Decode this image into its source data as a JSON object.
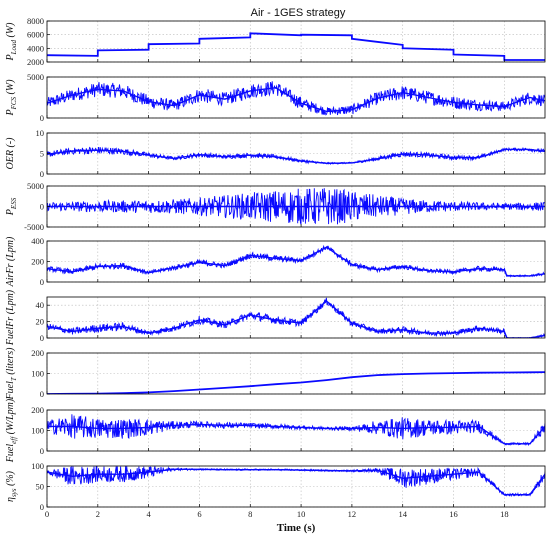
{
  "chart_data": {
    "type": "line",
    "title": "Air - 1GES strategy",
    "xlabel": "Time (s)",
    "xlim": [
      0,
      19.6
    ],
    "xticks": [
      "0",
      "2",
      "4",
      "6",
      "8",
      "10",
      "12",
      "14",
      "16",
      "18"
    ],
    "color": "#0a0aff",
    "grid": true,
    "panels": [
      {
        "id": "pload",
        "ylabel_main": "P",
        "ylabel_sub": "Load",
        "ylabel_unit": " (W)",
        "ylim": [
          2000,
          8000
        ],
        "yticks": [
          "2000",
          "4000",
          "6000",
          "8000"
        ],
        "kind": "step",
        "x": [
          0,
          2,
          2,
          4,
          4,
          6,
          6,
          8,
          8,
          10,
          10,
          12,
          12,
          14,
          14,
          16,
          16,
          18,
          18,
          19.6
        ],
        "y": [
          3000,
          2900,
          3700,
          3800,
          4600,
          4700,
          5400,
          5600,
          6200,
          5900,
          6000,
          5900,
          5400,
          4500,
          4000,
          3800,
          3100,
          2900,
          2300,
          2300
        ]
      },
      {
        "id": "pfc",
        "ylabel_main": "P",
        "ylabel_sub": "FCS",
        "ylabel_unit": " (W)",
        "ylim": [
          0,
          5000
        ],
        "yticks": [
          "0",
          "5000"
        ],
        "kind": "noisy",
        "x": [
          0,
          1,
          2,
          3,
          4,
          5,
          6,
          7,
          8,
          9,
          10,
          11,
          12,
          13,
          14,
          15,
          16,
          17,
          18,
          19,
          19.6
        ],
        "y": [
          1800,
          2800,
          3500,
          3300,
          2000,
          1500,
          2800,
          2300,
          3300,
          3700,
          1800,
          800,
          1000,
          2400,
          3100,
          2500,
          1900,
          1600,
          1400,
          2500,
          2100
        ],
        "noise": [
          700,
          800,
          900,
          900,
          800,
          700,
          900,
          800,
          900,
          900,
          800,
          500,
          600,
          800,
          900,
          800,
          800,
          700,
          600,
          800,
          700
        ]
      },
      {
        "id": "oer",
        "ylabel_main": "OER (-)",
        "ylabel_sub": "",
        "ylabel_unit": "",
        "ylim": [
          0,
          10
        ],
        "yticks": [
          "0",
          "5",
          "10"
        ],
        "kind": "noisy",
        "x": [
          0,
          1,
          2,
          3,
          4,
          5,
          6,
          7,
          8,
          9,
          10,
          11,
          12,
          13,
          14,
          15,
          16,
          17,
          18,
          19,
          19.6
        ],
        "y": [
          4.8,
          5.6,
          5.8,
          5.5,
          4.6,
          3.8,
          4.7,
          4.2,
          4.6,
          4.2,
          3.2,
          2.6,
          2.7,
          3.7,
          4.9,
          4.6,
          4.0,
          4.0,
          6.0,
          6.0,
          5.5
        ],
        "noise": [
          0.7,
          0.8,
          0.9,
          0.8,
          0.6,
          0.4,
          0.6,
          0.5,
          0.6,
          0.5,
          0.4,
          0.2,
          0.2,
          0.5,
          0.7,
          0.6,
          0.6,
          0.5,
          0.3,
          0.4,
          0.5
        ]
      },
      {
        "id": "pss",
        "ylabel_main": "P",
        "ylabel_sub": "ESS",
        "ylabel_unit": "",
        "ylim": [
          -5000,
          5000
        ],
        "yticks": [
          "-5000",
          "0",
          "5000"
        ],
        "kind": "noisy",
        "x": [
          0,
          1,
          2,
          3,
          4,
          5,
          6,
          7,
          8,
          9,
          10,
          11,
          12,
          13,
          14,
          15,
          16,
          17,
          18,
          19,
          19.6
        ],
        "y": [
          0,
          0,
          0,
          0,
          0,
          0,
          0,
          0,
          0,
          0,
          0,
          0,
          0,
          0,
          0,
          0,
          0,
          0,
          0,
          0,
          0
        ],
        "noise": [
          1000,
          1200,
          1400,
          1500,
          1600,
          1800,
          2200,
          2800,
          3400,
          4000,
          4500,
          4800,
          3800,
          2800,
          2000,
          1500,
          1200,
          1000,
          800,
          1000,
          1100
        ]
      },
      {
        "id": "airfr",
        "ylabel_main": "AirFr (Lpm)",
        "ylabel_sub": "",
        "ylabel_unit": "",
        "ylim": [
          0,
          400
        ],
        "yticks": [
          "0",
          "200",
          "400"
        ],
        "kind": "noisy",
        "x": [
          0,
          1,
          2,
          3,
          4,
          5,
          6,
          7,
          8,
          9,
          10,
          11,
          12,
          13,
          14,
          15,
          16,
          17,
          18,
          18.1,
          19,
          19.6
        ],
        "y": [
          130,
          100,
          150,
          160,
          90,
          140,
          190,
          160,
          260,
          230,
          210,
          340,
          170,
          120,
          150,
          110,
          100,
          130,
          120,
          60,
          60,
          80
        ],
        "noise": [
          25,
          25,
          30,
          30,
          20,
          25,
          30,
          25,
          30,
          30,
          25,
          25,
          25,
          20,
          25,
          20,
          20,
          25,
          20,
          8,
          8,
          15
        ]
      },
      {
        "id": "fuelfr",
        "ylabel_main": "FuelFr (Lpm)",
        "ylabel_sub": "",
        "ylabel_unit": "",
        "ylim": [
          0,
          50
        ],
        "yticks": [
          "0",
          "20",
          "40"
        ],
        "kind": "noisy",
        "x": [
          0,
          1,
          2,
          3,
          4,
          5,
          6,
          7,
          8,
          9,
          10,
          11,
          12,
          13,
          14,
          15,
          16,
          17,
          18,
          18.1,
          19,
          19.6
        ],
        "y": [
          14,
          8,
          12,
          14,
          6,
          12,
          22,
          16,
          28,
          22,
          18,
          45,
          18,
          8,
          10,
          6,
          6,
          12,
          8,
          0,
          0,
          3
        ],
        "noise": [
          4,
          4,
          5,
          5,
          3,
          4,
          5,
          4,
          5,
          5,
          4,
          4,
          4,
          3,
          4,
          3,
          3,
          4,
          3,
          0.5,
          0.5,
          2
        ]
      },
      {
        "id": "fuelt",
        "ylabel_main": "Fuel",
        "ylabel_sub": "T",
        "ylabel_unit": " (liters)",
        "ylim": [
          0,
          200
        ],
        "yticks": [
          "0",
          "100",
          "200"
        ],
        "kind": "smooth",
        "x": [
          0,
          1,
          2,
          3,
          4,
          5,
          6,
          7,
          8,
          9,
          10,
          11,
          12,
          13,
          14,
          15,
          16,
          17,
          18,
          19,
          19.6
        ],
        "y": [
          0,
          1,
          2,
          4,
          8,
          14,
          22,
          30,
          38,
          48,
          56,
          68,
          82,
          92,
          97,
          100,
          102,
          104,
          105,
          106,
          107
        ]
      },
      {
        "id": "fueleff",
        "ylabel_main": "Fuel",
        "ylabel_sub": "eff",
        "ylabel_unit": " (W/Lpm)",
        "ylim": [
          0,
          200
        ],
        "yticks": [
          "0",
          "100",
          "200"
        ],
        "kind": "noisy",
        "x": [
          0,
          1,
          2,
          3,
          4,
          5,
          6,
          7,
          8,
          9,
          10,
          11,
          12,
          13,
          14,
          15,
          16,
          17,
          18,
          18.1,
          19,
          19.6
        ],
        "y": [
          120,
          120,
          110,
          110,
          115,
          125,
          130,
          125,
          125,
          120,
          115,
          110,
          110,
          115,
          110,
          115,
          115,
          120,
          35,
          35,
          35,
          120
        ],
        "noise": [
          30,
          60,
          50,
          50,
          40,
          20,
          15,
          15,
          12,
          12,
          10,
          8,
          10,
          35,
          55,
          40,
          35,
          30,
          5,
          5,
          5,
          30
        ]
      },
      {
        "id": "eta",
        "ylabel_main": "η",
        "ylabel_sub": "sys",
        "ylabel_unit": " (%)",
        "ylim": [
          0,
          100
        ],
        "yticks": [
          "0",
          "50",
          "100"
        ],
        "kind": "noisy",
        "x": [
          0,
          1,
          2,
          3,
          4,
          5,
          6,
          7,
          8,
          9,
          10,
          11,
          12,
          13,
          14,
          15,
          16,
          17,
          18,
          18.1,
          19,
          19.6
        ],
        "y": [
          85,
          75,
          80,
          80,
          85,
          92,
          92,
          91,
          91,
          91,
          90,
          89,
          88,
          90,
          70,
          75,
          80,
          85,
          30,
          30,
          30,
          80
        ],
        "noise": [
          5,
          25,
          20,
          20,
          15,
          3,
          2,
          2,
          2,
          2,
          2,
          2,
          2,
          5,
          25,
          20,
          15,
          10,
          3,
          3,
          3,
          15
        ]
      }
    ]
  }
}
